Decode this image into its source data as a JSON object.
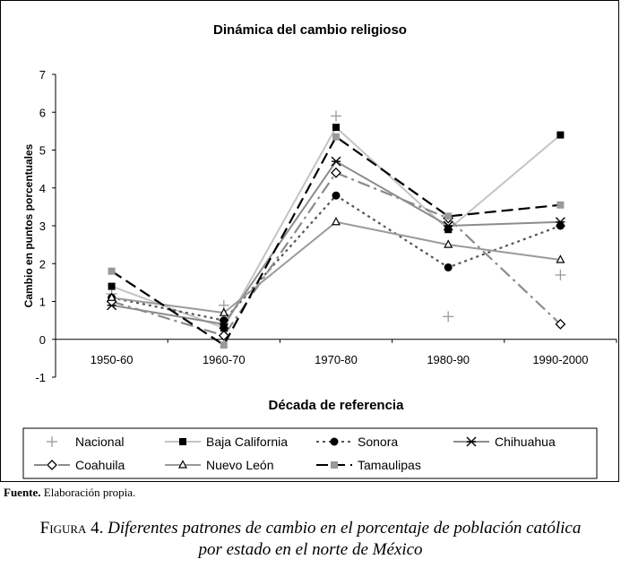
{
  "chart_data": {
    "type": "line",
    "title": "Dinámica del cambio religioso",
    "xlabel": "Década de referencia",
    "ylabel": "Cambio en puntos porcentuales",
    "categories": [
      "1950-60",
      "1960-70",
      "1970-80",
      "1980-90",
      "1990-2000"
    ],
    "ylim": [
      -1,
      7
    ],
    "yticks": [
      -1,
      0,
      1,
      2,
      3,
      4,
      5,
      6,
      7
    ],
    "grid": false,
    "legend_position": "bottom",
    "series": [
      {
        "name": "Nacional",
        "values": [
          1.2,
          0.9,
          5.9,
          0.6,
          1.7
        ],
        "color": "#9a9a9a",
        "marker": "plus",
        "line": "none"
      },
      {
        "name": "Baja California",
        "values": [
          1.4,
          0.3,
          5.6,
          2.9,
          5.4
        ],
        "color": "#c4c4c4",
        "marker": "square",
        "marker_color": "#000000",
        "line": "solid"
      },
      {
        "name": "Sonora",
        "values": [
          1.1,
          0.5,
          3.8,
          1.9,
          3.0
        ],
        "color": "#555555",
        "marker": "circle",
        "marker_color": "#000000",
        "line": "dotted"
      },
      {
        "name": "Chihuahua",
        "values": [
          0.9,
          0.4,
          4.7,
          3.0,
          3.1
        ],
        "color": "#8c8c8c",
        "marker": "asterisk",
        "marker_color": "#000000",
        "line": "solid"
      },
      {
        "name": "Coahuila",
        "values": [
          1.0,
          0.1,
          4.4,
          3.2,
          0.4
        ],
        "color": "#8c8c8c",
        "marker": "diamond",
        "marker_color": "#000000",
        "line": "dashdot"
      },
      {
        "name": "Nuevo León",
        "values": [
          1.1,
          0.7,
          3.1,
          2.5,
          2.1
        ],
        "color": "#9a9a9a",
        "marker": "triangle",
        "marker_color": "#000000",
        "line": "solid"
      },
      {
        "name": "Tamaulipas",
        "values": [
          1.8,
          -0.15,
          5.35,
          3.25,
          3.55
        ],
        "color": "#000000",
        "marker": "square",
        "marker_color": "#9a9a9a",
        "line": "dashed"
      }
    ]
  },
  "source": {
    "label": "Fuente.",
    "text": "Elaboración propia."
  },
  "caption": {
    "prefix": "Figura 4.",
    "line1": "Diferentes patrones de cambio en el porcentaje de población católica",
    "line2": "por estado en el norte de México"
  }
}
